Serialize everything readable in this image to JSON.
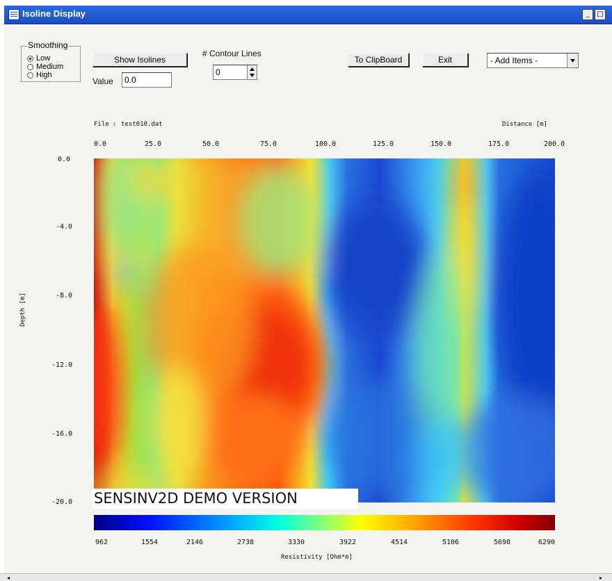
{
  "window": {
    "title": "Isoline Display",
    "minimize_glyph": "_",
    "maximize_glyph": "□"
  },
  "smoothing": {
    "label": "Smoothing",
    "options": [
      "Low",
      "Medium",
      "High"
    ],
    "selected": "Low"
  },
  "toolbar": {
    "show_isolines_label": "Show Isolines",
    "value_label": "Value",
    "value": "0.0",
    "contour_lines_label": "# Contour Lines",
    "contour_lines_value": "0",
    "to_clipboard_label": "To ClipBoard",
    "exit_label": "Exit",
    "add_items_value": "- Add Items -"
  },
  "plot_header": {
    "file_label": "File :",
    "file_name": "test010.dat",
    "distance_label": "Distance [m]"
  },
  "chart_data": {
    "type": "heatmap",
    "xlabel": "Distance [m]",
    "ylabel": "Depth [m]",
    "x_ticks": [
      "0.0",
      "25.0",
      "50.0",
      "75.0",
      "100.0",
      "125.0",
      "150.0",
      "175.0",
      "200.0"
    ],
    "y_ticks": [
      "0.0",
      "-4.0",
      "-8.0",
      "-12.0",
      "-16.0",
      "-20.0"
    ],
    "xlim": [
      0,
      200
    ],
    "ylim": [
      -20,
      0
    ],
    "colorbar": {
      "label": "Resistivity [Ohm*m]",
      "ticks": [
        "962",
        "1554",
        "2146",
        "2738",
        "3330",
        "3922",
        "4514",
        "5106",
        "5698",
        "6290"
      ],
      "range": [
        962,
        6290
      ]
    },
    "watermark": "SENSINV2D DEMO VERSION",
    "colors": {
      "low": "#000083",
      "mid_low": "#00a8ff",
      "mid": "#a8ff58",
      "mid_high": "#ffa000",
      "high": "#800000"
    }
  }
}
